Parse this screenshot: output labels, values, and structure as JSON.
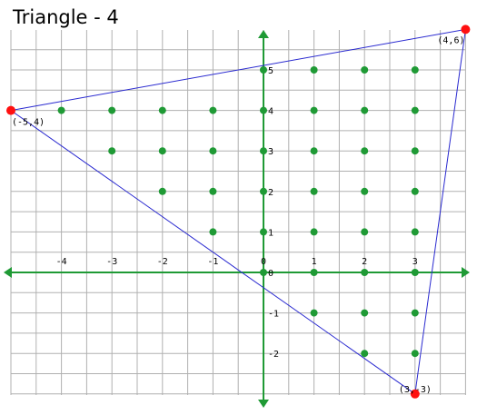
{
  "title": "Triangle - 4",
  "colors": {
    "grid": "#b0b0b0",
    "axis": "#1f9a35",
    "lattice_point": "#1f9a35",
    "triangle_edge": "#2a2ad0",
    "vertex": "#ff1010"
  },
  "chart_data": {
    "type": "scatter",
    "x_ticks": [
      -4,
      -3,
      -2,
      -1,
      0,
      1,
      2,
      3
    ],
    "y_ticks": [
      5,
      4,
      3,
      2,
      1,
      0,
      -1,
      -2
    ],
    "xlim": [
      -5,
      4
    ],
    "ylim": [
      -3,
      6
    ],
    "grid": true,
    "vertices": [
      {
        "x": 4,
        "y": 6,
        "label": "(4,6)"
      },
      {
        "x": -5,
        "y": 4,
        "label": "(-5,4)"
      },
      {
        "x": 3,
        "y": -3,
        "label": "(3,-3)"
      }
    ],
    "lattice_points": [
      [
        0,
        5
      ],
      [
        1,
        5
      ],
      [
        2,
        5
      ],
      [
        3,
        5
      ],
      [
        -4,
        4
      ],
      [
        -3,
        4
      ],
      [
        -2,
        4
      ],
      [
        -1,
        4
      ],
      [
        0,
        4
      ],
      [
        1,
        4
      ],
      [
        2,
        4
      ],
      [
        3,
        4
      ],
      [
        -3,
        3
      ],
      [
        -2,
        3
      ],
      [
        -1,
        3
      ],
      [
        0,
        3
      ],
      [
        1,
        3
      ],
      [
        2,
        3
      ],
      [
        3,
        3
      ],
      [
        -2,
        2
      ],
      [
        -1,
        2
      ],
      [
        0,
        2
      ],
      [
        1,
        2
      ],
      [
        2,
        2
      ],
      [
        3,
        2
      ],
      [
        -1,
        1
      ],
      [
        0,
        1
      ],
      [
        1,
        1
      ],
      [
        2,
        1
      ],
      [
        3,
        1
      ],
      [
        0,
        0
      ],
      [
        1,
        0
      ],
      [
        2,
        0
      ],
      [
        3,
        0
      ],
      [
        1,
        -1
      ],
      [
        2,
        -1
      ],
      [
        3,
        -1
      ],
      [
        2,
        -2
      ],
      [
        3,
        -2
      ]
    ]
  }
}
